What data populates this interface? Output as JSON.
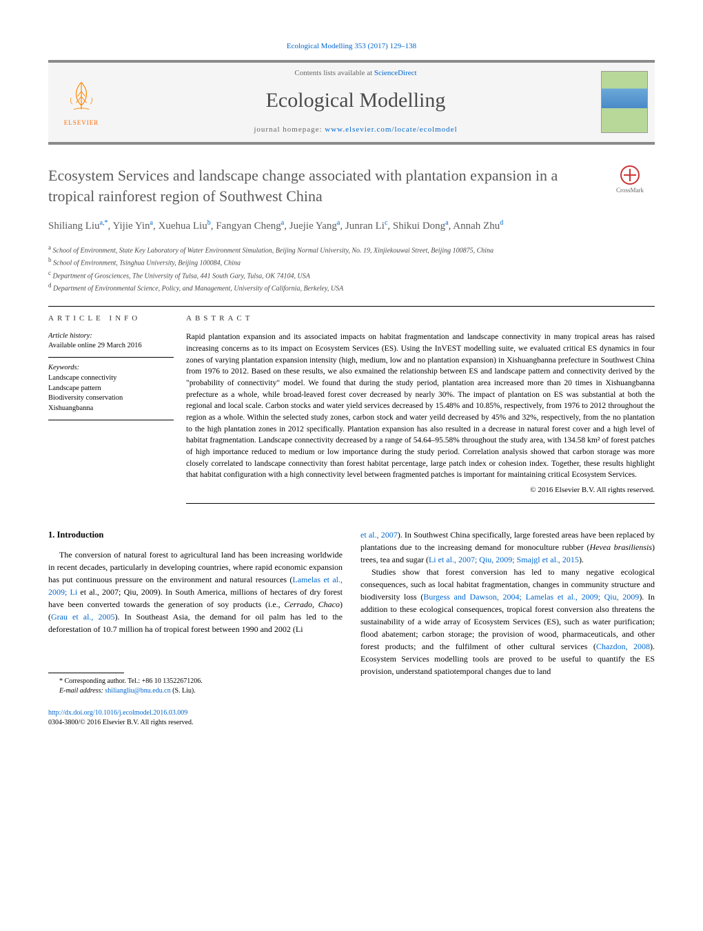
{
  "header": {
    "citation": "Ecological Modelling 353 (2017) 129–138",
    "contents_prefix": "Contents lists available at ",
    "contents_link": "ScienceDirect",
    "journal": "Ecological Modelling",
    "homepage_prefix": "journal homepage: ",
    "homepage_url": "www.elsevier.com/locate/ecolmodel",
    "publisher": "ELSEVIER"
  },
  "crossmark": "CrossMark",
  "title": "Ecosystem Services and landscape change associated with plantation expansion in a tropical rainforest region of Southwest China",
  "authors_html": "Shiliang Liu<sup>a,*</sup>, Yijie Yin<sup>a</sup>, Xuehua Liu<sup>b</sup>, Fangyan Cheng<sup>a</sup>, Juejie Yang<sup>a</sup>, Junran Li<sup>c</sup>, Shikui Dong<sup>a</sup>, Annah Zhu<sup>d</sup>",
  "affiliations": [
    {
      "sup": "a",
      "text": "School of Environment, State Key Laboratory of Water Environment Simulation, Beijing Normal University, No. 19, Xinjiekouwai Street, Beijing 100875, China"
    },
    {
      "sup": "b",
      "text": "School of Environment, Tsinghua University, Beijing 100084, China"
    },
    {
      "sup": "c",
      "text": "Department of Geosciences, The University of Tulsa, 441 South Gary, Tulsa, OK 74104, USA"
    },
    {
      "sup": "d",
      "text": "Department of Environmental Science, Policy, and Management, University of California, Berkeley, USA"
    }
  ],
  "article_info": {
    "heading": "article info",
    "history_label": "Article history:",
    "history_value": "Available online 29 March 2016",
    "keywords_label": "Keywords:",
    "keywords": [
      "Landscape connectivity",
      "Landscape pattern",
      "Biodiversity conservation",
      "Xishuangbanna"
    ]
  },
  "abstract": {
    "heading": "abstract",
    "text": "Rapid plantation expansion and its associated impacts on habitat fragmentation and landscape connectivity in many tropical areas has raised increasing concerns as to its impact on Ecosystem Services (ES). Using the InVEST modelling suite, we evaluated critical ES dynamics in four zones of varying plantation expansion intensity (high, medium, low and no plantation expansion) in Xishuangbanna prefecture in Southwest China from 1976 to 2012. Based on these results, we also exmained the relationship between ES and landscape pattern and connectivity derived by the \"probability of connectivity\" model. We found that during the study period, plantation area increased more than 20 times in Xishuangbanna prefecture as a whole, while broad-leaved forest cover decreased by nearly 30%. The impact of plantation on ES was substantial at both the regional and local scale. Carbon stocks and water yield services decreased by 15.48% and 10.85%, respectively, from 1976 to 2012 throughout the region as a whole. Within the selected study zones, carbon stock and water yeild decreased by 45% and 32%, respectively, from the no plantation to the high plantation zones in 2012 specifically. Plantation expansion has also resulted in a decrease in natural forest cover and a high level of habitat fragmentation. Landscape connectivity decreased by a range of 54.64–95.58% throughout the study area, with 134.58 km² of forest patches of high importance reduced to medium or low importance during the study period. Correlation analysis showed that carbon storage was more closely correlated to landscape connectivity than forest habitat percentage, large patch index or cohesion index. Together, these results highlight that habitat configuration with a high connectivity level between fragmented patches is important for maintaining critical Ecosystem Services.",
    "copyright": "© 2016 Elsevier B.V. All rights reserved."
  },
  "body": {
    "intro_heading": "1.  Introduction",
    "col1_p1": "The conversion of natural forest to agricultural land has been increasing worldwide in recent decades, particularly in developing countries, where rapid economic expansion has put continuous pressure on the environment and natural resources (Lamelas et al., 2009; Li et al., 2007; Qiu, 2009). In South America, millions of hectares of dry forest have been converted towards the generation of soy products (i.e., Cerrado, Chaco) (Grau et al., 2005). In Southeast Asia, the demand for oil palm has led to the deforestation of 10.7 million ha of tropical forest between 1990 and 2002 (Li",
    "col2_p1": "et al., 2007). In Southwest China specifically, large forested areas have been replaced by plantations due to the increasing demand for monoculture rubber (Hevea brasiliensis) trees, tea and sugar (Li et al., 2007; Qiu, 2009; Smajgl et al., 2015).",
    "col2_p2": "Studies show that forest conversion has led to many negative ecological consequences, such as local habitat fragmentation, changes in community structure and biodiversity loss (Burgess and Dawson, 2004; Lamelas et al., 2009; Qiu, 2009). In addition to these ecological consequences, tropical forest conversion also threatens the sustainability of a wide array of Ecosystem Services (ES), such as water purification; flood abatement; carbon storage; the provision of wood, pharmaceuticals, and other forest products; and the fulfilment of other cultural services (Chazdon, 2008). Ecosystem Services modelling tools are proved to be useful to quantify the ES provision, understand spatiotemporal changes due to land"
  },
  "footnote": {
    "corresponding": "* Corresponding author. Tel.: +86 10 13522671206.",
    "email_label": "E-mail address: ",
    "email": "shiliangliu@bnu.edu.cn",
    "email_suffix": " (S. Liu)."
  },
  "footer": {
    "doi": "http://dx.doi.org/10.1016/j.ecolmodel.2016.03.009",
    "issn": "0304-3800/© 2016 Elsevier B.V. All rights reserved."
  },
  "links": {
    "col1": [
      "Lamelas et al., 2009; Li et al., 2007; Qiu, 2009",
      "Grau et al., 2005",
      "Li"
    ],
    "col2": [
      "et al., 2007",
      "Li et al., 2007; Qiu, 2009; Smajgl et al., 2015",
      "Burgess and Dawson, 2004; Lamelas et al., 2009; Qiu, 2009",
      "Chazdon, 2008"
    ]
  },
  "colors": {
    "link": "#0066cc",
    "elsevier": "#ff6600",
    "heading_gray": "#5a5a5a",
    "border": "#000000"
  }
}
